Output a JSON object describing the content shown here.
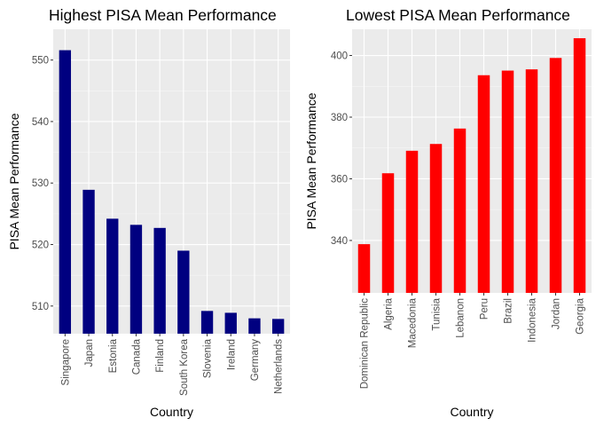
{
  "colors": {
    "panel_bg": "#ebebeb",
    "grid_major": "#ffffff",
    "grid_minor": "#f5f5f5",
    "tick": "#333333"
  },
  "chart_data": [
    {
      "type": "bar",
      "title": "Highest PISA Mean Performance",
      "xlabel": "Country",
      "ylabel": "PISA Mean Performance",
      "color": "#000080",
      "categories": [
        "Singapore",
        "Japan",
        "Estonia",
        "Canada",
        "Finland",
        "South Korea",
        "Slovenia",
        "Ireland",
        "Germany",
        "Netherlands"
      ],
      "values": [
        551.6,
        528.9,
        524.2,
        523.2,
        522.7,
        519.0,
        509.2,
        508.9,
        508.0,
        507.9
      ],
      "ylim": [
        505.5,
        555.0
      ],
      "yticks": [
        510,
        520,
        530,
        540,
        550
      ],
      "grid": true
    },
    {
      "type": "bar",
      "title": "Lowest PISA Mean Performance",
      "xlabel": "Country",
      "ylabel": "PISA Mean Performance",
      "color": "#ff0000",
      "categories": [
        "Dominican Republic",
        "Algeria",
        "Macedonia",
        "Tunisia",
        "Lebanon",
        "Peru",
        "Brazil",
        "Indonesia",
        "Jordan",
        "Georgia"
      ],
      "values": [
        338.8,
        361.8,
        369.1,
        371.3,
        376.3,
        393.6,
        395.1,
        395.5,
        399.2,
        405.6
      ],
      "ylim": [
        323.0,
        408.5
      ],
      "yticks": [
        340,
        360,
        380,
        400
      ],
      "grid": true
    }
  ]
}
